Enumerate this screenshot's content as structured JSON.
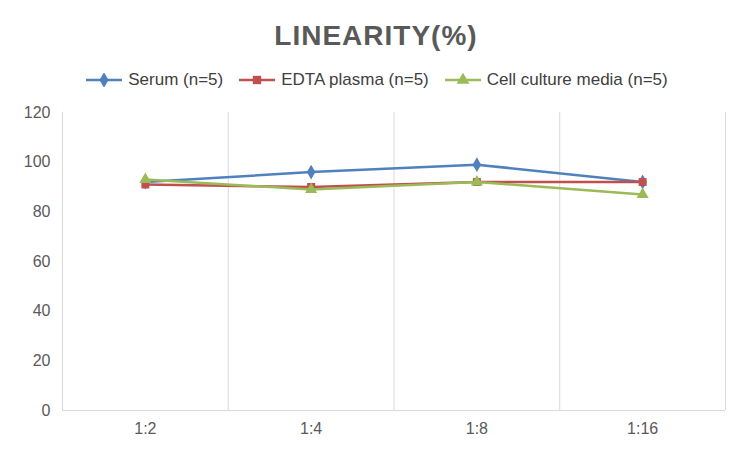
{
  "chart_data": {
    "type": "line",
    "title": "LINEARITY(%)",
    "categories": [
      "1:2",
      "1:4",
      "1:8",
      "1:16"
    ],
    "series": [
      {
        "name": "Serum (n=5)",
        "color": "#4f81bd",
        "marker": "diamond",
        "values": [
          92,
          96,
          99,
          92
        ]
      },
      {
        "name": "EDTA plasma (n=5)",
        "color": "#c0504d",
        "marker": "square",
        "values": [
          91,
          90,
          92,
          92
        ]
      },
      {
        "name": "Cell culture media (n=5)",
        "color": "#9bbb59",
        "marker": "triangle",
        "values": [
          93,
          89,
          92,
          87
        ]
      }
    ],
    "ylim": [
      0,
      120
    ],
    "yticks": [
      0,
      20,
      40,
      60,
      80,
      100,
      120
    ],
    "grid": true,
    "legend": "top"
  }
}
